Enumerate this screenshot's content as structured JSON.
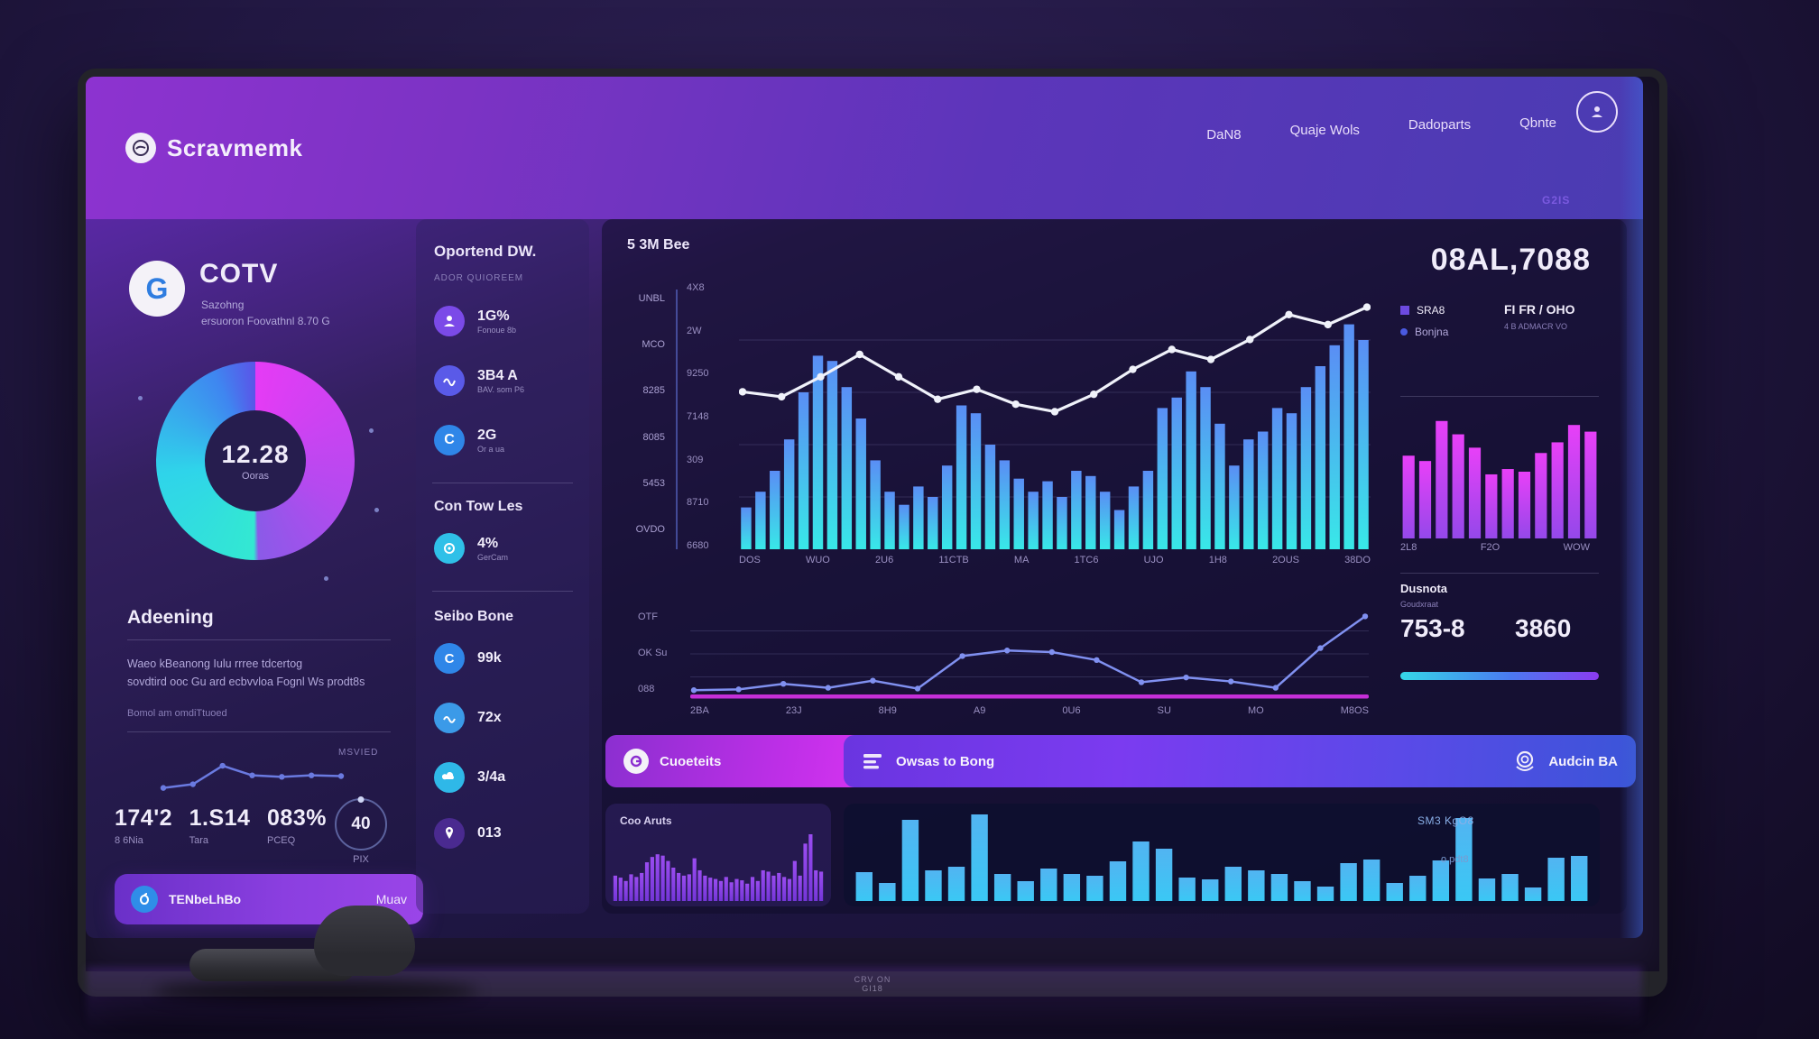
{
  "header": {
    "logo": "Scravmemk",
    "nav": [
      {
        "label": "DaN8"
      },
      {
        "label": "Quaje Wols"
      },
      {
        "label": "Dadoparts"
      },
      {
        "label": "Qbnte"
      }
    ],
    "corner_tag": "G2IS"
  },
  "profile": {
    "avatar_letter": "G",
    "name": "COTV",
    "line1": "Sazohng",
    "line2": "ersuoron Foovathnl 8.70 G",
    "donut": {
      "value": "12.28",
      "label": "Ooras"
    },
    "section": {
      "title": "Adeening",
      "para1": "Waeo kBeanong Iulu rrree tdcertog",
      "para2": "sovdtird ooc Gu ard ecbvvloa Fognl Ws prodt8s",
      "footnote": "Bomol am omdiTtuoed",
      "corner": "MSVIED"
    },
    "stats": [
      {
        "value": "174'2",
        "label": "8 6Nia"
      },
      {
        "value": "1.S14",
        "label": "Tara"
      },
      {
        "value": "083%",
        "label": "PCEQ"
      }
    ],
    "gauge": {
      "value": "40",
      "label": "PIX"
    },
    "footer": {
      "label": "TENbeLhBo",
      "action": "Muav"
    }
  },
  "ops": {
    "title": "Oportend DW.",
    "subtitle": "ADOR QUIOREEM",
    "items": [
      {
        "value": "1G%",
        "sub": "Fonoue 8b"
      },
      {
        "value": "3B4 A",
        "sub": "BAV. som P6"
      },
      {
        "value": "2G",
        "sub": "Or a ua"
      }
    ],
    "section2": {
      "title": "Con Tow Les",
      "items": [
        {
          "value": "4%",
          "sub": "GerCam"
        }
      ]
    },
    "section3": {
      "title": "Seibo Bone",
      "items": [
        {
          "value": "99k"
        },
        {
          "value": "72x"
        },
        {
          "value": "3/4a"
        },
        {
          "value": "013"
        }
      ]
    }
  },
  "main": {
    "title": "5 3M Bee",
    "big_value": "08AL,7088",
    "legend": [
      {
        "label": "SRA8"
      },
      {
        "label": "Bonjna"
      }
    ],
    "note1": "FI FR / OHO",
    "note2": "4 B ADMACR VO",
    "dusnota": {
      "title": "Dusnota",
      "subtitle": "Goudxraat",
      "value1": "753-8",
      "value2": "3860"
    },
    "buttons": {
      "primary": "Cuoeteits",
      "secondary": "Owsas to Bong",
      "secondary_right": "Audcin BA"
    },
    "bottom": {
      "left_title": "Coo Aruts",
      "caption1": "SM3 KgO8",
      "caption2": "o pdt8"
    }
  },
  "tv": {
    "bezel_line1": "CRV ON",
    "bezel_line2": "GI18"
  },
  "colors": {
    "accent_cyan": "#35d8f0",
    "accent_magenta": "#d03bf0",
    "accent_purple": "#7b3be0",
    "accent_blue": "#3b7bf0",
    "line_white": "#f0f2fa"
  },
  "chart_data": [
    {
      "id": "donut",
      "type": "pie",
      "title": "12.28",
      "sub_label": "Ooras",
      "slices": [
        {
          "label": "left-half",
          "value": 50,
          "color": "#2fe0d8"
        },
        {
          "label": "right-half",
          "value": 50,
          "color": "#cc3bf0"
        }
      ]
    },
    {
      "id": "main_combo",
      "type": "bar",
      "gradient": "cyan",
      "grid": 4,
      "values": [
        16,
        22,
        30,
        42,
        60,
        74,
        72,
        62,
        50,
        34,
        22,
        17,
        24,
        20,
        32,
        55,
        52,
        40,
        34,
        27,
        22,
        26,
        20,
        30,
        28,
        22,
        15,
        24,
        30,
        54,
        58,
        68,
        62,
        48,
        32,
        42,
        45,
        54,
        52,
        62,
        70,
        78,
        86,
        80
      ],
      "line": [
        60,
        58,
        66,
        75,
        66,
        57,
        61,
        55,
        52,
        59,
        69,
        77,
        73,
        81,
        91,
        87,
        94
      ],
      "line_color": "#f0f2fa",
      "x_labels": [
        "DOS",
        "WUO",
        "2U6",
        "11CTB",
        "MA",
        "1TC6",
        "UJO",
        "1H8",
        "2OUS",
        "38DO"
      ],
      "y_labels_left": [
        "UNBL",
        "MCO",
        "8285",
        "8085",
        "5453",
        "OVDO"
      ],
      "y_labels_inner": [
        "4X8",
        "2W",
        "9250",
        "7148",
        "309",
        "8710",
        "6680"
      ]
    },
    {
      "id": "mini_bars",
      "type": "bar",
      "gradient": "magenta",
      "values": [
        62,
        58,
        88,
        78,
        68,
        48,
        52,
        50,
        64,
        72,
        85,
        80
      ],
      "x_labels": [
        "2L8",
        "F2O",
        "WOW"
      ]
    },
    {
      "id": "flat_line",
      "type": "line",
      "color": "#8090f0",
      "dots": true,
      "grid": 3,
      "baseline": true,
      "baseline_color": "#c52fd8",
      "values": [
        2,
        3,
        10,
        5,
        14,
        4,
        45,
        52,
        50,
        40,
        12,
        18,
        13,
        5,
        55,
        95
      ],
      "x_labels": [
        "2BA",
        "23J",
        "8H9",
        "A9",
        "0U6",
        "SU",
        "MO",
        "M8OS"
      ],
      "y_labels": [
        "OTF",
        "OK Su",
        "088"
      ]
    },
    {
      "id": "purple_bars",
      "type": "bar",
      "gradient": "purple",
      "values": [
        38,
        35,
        30,
        40,
        36,
        42,
        58,
        66,
        70,
        68,
        60,
        50,
        42,
        38,
        40,
        64,
        46,
        38,
        35,
        33,
        30,
        36,
        28,
        33,
        31,
        26,
        36,
        30,
        46,
        44,
        38,
        42,
        36,
        33,
        60,
        38,
        86,
        100,
        46,
        44
      ]
    },
    {
      "id": "cyan_bars",
      "type": "bar",
      "gradient": "cyan2",
      "values": [
        32,
        20,
        90,
        34,
        38,
        96,
        30,
        22,
        36,
        30,
        28,
        44,
        66,
        58,
        26,
        24,
        38,
        34,
        30,
        22,
        16,
        42,
        46,
        20,
        28,
        45,
        92,
        25,
        30,
        15,
        48,
        50
      ]
    },
    {
      "id": "sparkline",
      "type": "line",
      "color": "#6a7ae0",
      "dots": true,
      "values": [
        18,
        28,
        78,
        52,
        48,
        52,
        50
      ]
    }
  ]
}
